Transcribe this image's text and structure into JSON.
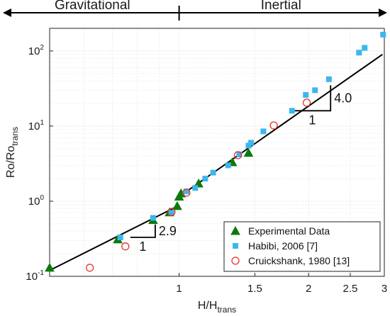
{
  "chart_data": {
    "type": "scatter",
    "x_scale": "log",
    "y_scale": "log",
    "xlim": [
      0.5,
      3
    ],
    "ylim": [
      0.1,
      200
    ],
    "xlabel": {
      "base": "H/H",
      "sub": "trans"
    },
    "ylabel": {
      "base": "Ro/Ro",
      "sub": "trans"
    },
    "grid": true,
    "legend_position": "bottom-right",
    "x_ticks": [
      {
        "value": 1,
        "label": "1"
      },
      {
        "value": 1.5,
        "label": "1.5"
      },
      {
        "value": 2,
        "label": "2"
      },
      {
        "value": 2.5,
        "label": "2.5"
      },
      {
        "value": 3,
        "label": "3"
      }
    ],
    "y_ticks": [
      {
        "value": 0.1,
        "base": "10",
        "exp": "-1"
      },
      {
        "value": 1,
        "base": "10",
        "exp": "0"
      },
      {
        "value": 10,
        "base": "10",
        "exp": "1"
      },
      {
        "value": 100,
        "base": "10",
        "exp": "2"
      }
    ],
    "regimes": {
      "left": "Gravitational",
      "right": "Inertial",
      "boundary_x": 1
    },
    "fit_lines": [
      {
        "slope": 2.9,
        "x": [
          0.5,
          1.0
        ],
        "y": [
          0.12,
          0.88
        ]
      },
      {
        "slope": 4.0,
        "x": [
          1.0,
          2.97
        ],
        "y": [
          1.15,
          90
        ]
      }
    ],
    "slope_triangles": [
      {
        "x": [
          0.77,
          0.88
        ],
        "y": [
          0.33,
          0.49
        ],
        "run_label": "1",
        "rise_label": "2.9"
      },
      {
        "x": [
          1.85,
          2.25
        ],
        "y": [
          16,
          35
        ],
        "run_label": "1",
        "rise_label": "4.0"
      }
    ],
    "series": [
      {
        "name": "Experimental Data",
        "marker": "triangle",
        "color": "#0b7a0b",
        "points": [
          [
            0.5,
            0.13
          ],
          [
            0.72,
            0.31
          ],
          [
            0.87,
            0.56
          ],
          [
            0.95,
            0.71
          ],
          [
            0.99,
            0.86
          ],
          [
            1.0,
            1.15
          ],
          [
            1.01,
            1.27
          ],
          [
            1.11,
            1.72
          ],
          [
            1.33,
            3.3
          ],
          [
            1.45,
            4.4
          ]
        ]
      },
      {
        "name": "Habibi, 2006 [7]",
        "marker": "square",
        "color": "#3cb7ec",
        "points": [
          [
            0.73,
            0.33
          ],
          [
            0.87,
            0.6
          ],
          [
            0.96,
            0.7
          ],
          [
            1.04,
            1.35
          ],
          [
            1.09,
            1.5
          ],
          [
            1.15,
            2.0
          ],
          [
            1.2,
            2.4
          ],
          [
            1.3,
            3.0
          ],
          [
            1.38,
            4.2
          ],
          [
            1.45,
            5.5
          ],
          [
            1.47,
            6.0
          ],
          [
            1.57,
            8.5
          ],
          [
            1.83,
            16
          ],
          [
            1.97,
            26
          ],
          [
            2.07,
            30
          ],
          [
            2.23,
            42
          ],
          [
            2.62,
            95
          ],
          [
            2.7,
            110
          ],
          [
            2.98,
            165
          ]
        ]
      },
      {
        "name": "Cruickshank, 1980 [13]",
        "marker": "circle",
        "color": "#e8322d",
        "points": [
          [
            0.62,
            0.13
          ],
          [
            0.75,
            0.25
          ],
          [
            0.96,
            0.72
          ],
          [
            1.04,
            1.3
          ],
          [
            1.37,
            4.1
          ],
          [
            1.66,
            10.2
          ],
          [
            1.98,
            20.5
          ]
        ]
      }
    ]
  }
}
